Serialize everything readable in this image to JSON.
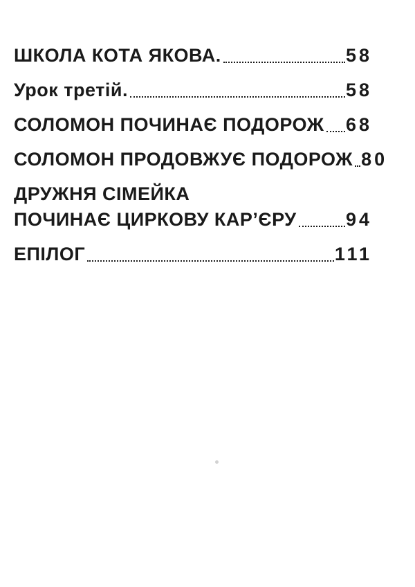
{
  "colors": {
    "background": "#ffffff",
    "text": "#1a1a1a"
  },
  "toc_entries": [
    {
      "lines": [
        "ШКОЛА КОТА ЯКОВА."
      ],
      "page": "58"
    },
    {
      "lines": [
        "Урок третій."
      ],
      "page": "58"
    },
    {
      "lines": [
        "СОЛОМОН ПОЧИНАЄ ПОДОРОЖ"
      ],
      "page": "68"
    },
    {
      "lines": [
        "СОЛОМОН ПРОДОВЖУЄ ПОДОРОЖ"
      ],
      "page": "80"
    },
    {
      "lines": [
        "ДРУЖНЯ СІМЕЙКА",
        "ПОЧИНАЄ ЦИРКОВУ КАР’ЄРУ"
      ],
      "page": "94"
    },
    {
      "lines": [
        "ЕПІЛОГ"
      ],
      "page": "111"
    }
  ]
}
